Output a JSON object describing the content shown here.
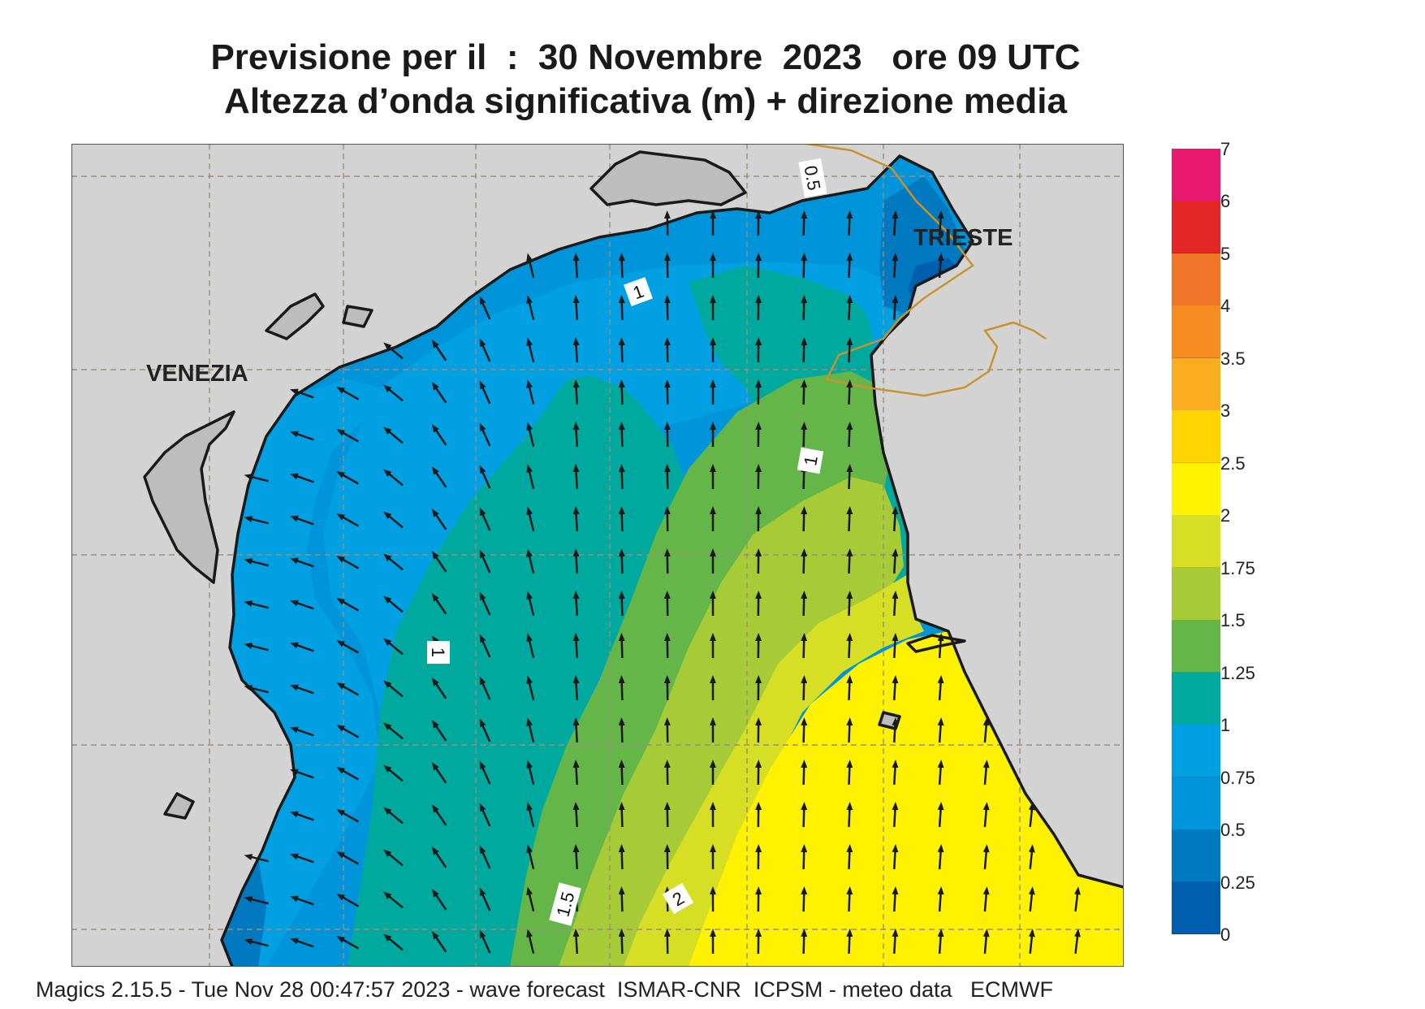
{
  "title": {
    "line1": "Previsione per il  :  30 Novembre  2023   ore 09 UTC",
    "line2": "Altezza d’onda significativa (m) + direzione media"
  },
  "map": {
    "places": [
      "VENEZIA",
      "TRIESTE"
    ],
    "contour_labels": [
      "0.5",
      "1",
      "1",
      "1",
      "1.5",
      "2"
    ]
  },
  "legend": {
    "ticks": [
      "7",
      "6",
      "5",
      "4",
      "3.5",
      "3",
      "2.5",
      "2",
      "1.75",
      "1.5",
      "1.25",
      "1",
      "0.75",
      "0.5",
      "0.25",
      "0"
    ],
    "colors": [
      "#e8186e",
      "#e32626",
      "#f2762a",
      "#f78c21",
      "#f9ad1f",
      "#ffd400",
      "#fff200",
      "#d6df23",
      "#a6cb37",
      "#65b649",
      "#00a99d",
      "#00a0e3",
      "#0095db",
      "#0079c1",
      "#005eae"
    ]
  },
  "footer": "Magics 2.15.5 - Tue Nov 28 00:47:57 2023 - wave forecast  ISMAR-CNR  ICPSM - meteo data   ECMWF"
}
